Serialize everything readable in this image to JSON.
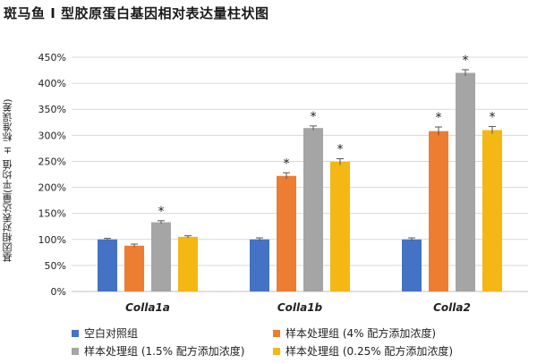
{
  "title": "斑马鱼 I 型胶原蛋白基因相对表达量柱状图",
  "chart_data": {
    "type": "bar",
    "title": "斑马鱼 I 型胶原蛋白基因相对表达量柱状图",
    "xlabel": "",
    "ylabel": "基因相对表达量(平均值 ± 标准误差)",
    "ylim": [
      0,
      450
    ],
    "y_ticks": [
      "0%",
      "50%",
      "100%",
      "150%",
      "200%",
      "250%",
      "300%",
      "350%",
      "400%",
      "450%"
    ],
    "y_unit": "%",
    "grid": true,
    "legend_position": "bottom",
    "categories": [
      "Colla1a",
      "Colla1b",
      "Colla2"
    ],
    "series": [
      {
        "name": "空白对照组",
        "color": "#4472C4",
        "values": [
          100,
          100,
          100
        ],
        "errors": [
          2,
          3,
          3
        ],
        "significant": [
          false,
          false,
          false
        ]
      },
      {
        "name": "样本处理组 (4% 配方添加浓度)",
        "color": "#ED7D31",
        "values": [
          88,
          222,
          308
        ],
        "errors": [
          3,
          6,
          8
        ],
        "significant": [
          false,
          true,
          true
        ]
      },
      {
        "name": "样本处理组 (1.5% 配方添加浓度)",
        "color": "#A5A5A5",
        "values": [
          133,
          314,
          420
        ],
        "errors": [
          3,
          4,
          6
        ],
        "significant": [
          true,
          true,
          true
        ]
      },
      {
        "name": "样本处理组 (0.25% 配方添加浓度)",
        "color": "#F4B714",
        "values": [
          105,
          249,
          310
        ],
        "errors": [
          2,
          6,
          7
        ],
        "significant": [
          false,
          true,
          true
        ]
      }
    ],
    "annotation_symbol": "*"
  }
}
